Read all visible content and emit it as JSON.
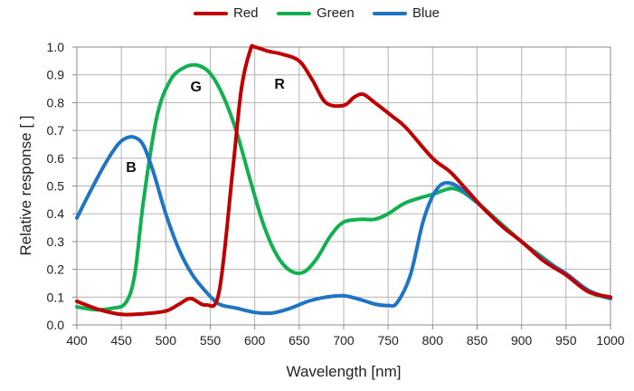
{
  "chart_data": {
    "type": "line",
    "title": "",
    "xlabel": "Wavelength [nm]",
    "ylabel": "Relative response [ ]",
    "xlim": [
      400,
      1000
    ],
    "ylim": [
      0,
      1.0
    ],
    "xticks": [
      "400",
      "450",
      "500",
      "550",
      "600",
      "650",
      "700",
      "750",
      "800",
      "850",
      "900",
      "950",
      "1000"
    ],
    "yticks": [
      "0.0",
      "0.1",
      "0.2",
      "0.3",
      "0.4",
      "0.5",
      "0.6",
      "0.7",
      "0.8",
      "0.9",
      "1.0"
    ],
    "grid": true,
    "legend_position": "top-center",
    "annotations": [
      {
        "text": "B",
        "x": 461,
        "y": 0.55
      },
      {
        "text": "G",
        "x": 534,
        "y": 0.84
      },
      {
        "text": "R",
        "x": 628,
        "y": 0.85
      }
    ],
    "series": [
      {
        "name": "Red",
        "color": "#c00000",
        "x": [
          400,
          425,
          450,
          475,
          500,
          515,
          528,
          545,
          560,
          575,
          585,
          595,
          600,
          615,
          630,
          650,
          665,
          680,
          700,
          712,
          722,
          735,
          755,
          770,
          800,
          820,
          840,
          860,
          880,
          900,
          925,
          950,
          975,
          1000
        ],
        "y": [
          0.085,
          0.055,
          0.038,
          0.04,
          0.05,
          0.075,
          0.095,
          0.072,
          0.12,
          0.55,
          0.85,
          0.99,
          1.0,
          0.985,
          0.975,
          0.95,
          0.88,
          0.8,
          0.79,
          0.82,
          0.83,
          0.8,
          0.75,
          0.71,
          0.6,
          0.55,
          0.48,
          0.41,
          0.35,
          0.3,
          0.23,
          0.18,
          0.12,
          0.1
        ]
      },
      {
        "name": "Green",
        "color": "#12b050",
        "x": [
          400,
          420,
          440,
          455,
          465,
          475,
          490,
          505,
          520,
          535,
          550,
          565,
          580,
          595,
          610,
          625,
          640,
          655,
          670,
          685,
          700,
          720,
          735,
          750,
          770,
          800,
          825,
          850,
          875,
          900,
          925,
          950,
          975,
          1000
        ],
        "y": [
          0.065,
          0.055,
          0.06,
          0.08,
          0.18,
          0.45,
          0.75,
          0.88,
          0.925,
          0.935,
          0.905,
          0.82,
          0.69,
          0.52,
          0.36,
          0.25,
          0.195,
          0.19,
          0.24,
          0.32,
          0.37,
          0.38,
          0.38,
          0.4,
          0.44,
          0.47,
          0.49,
          0.44,
          0.37,
          0.3,
          0.24,
          0.18,
          0.12,
          0.095
        ]
      },
      {
        "name": "Blue",
        "color": "#1f74c4",
        "x": [
          400,
          415,
          430,
          445,
          455,
          465,
          475,
          487,
          500,
          515,
          530,
          545,
          560,
          580,
          600,
          620,
          640,
          660,
          680,
          700,
          720,
          735,
          750,
          760,
          775,
          790,
          805,
          820,
          840,
          860,
          880,
          900,
          925,
          950,
          975,
          1000
        ],
        "y": [
          0.385,
          0.48,
          0.57,
          0.645,
          0.672,
          0.675,
          0.645,
          0.54,
          0.4,
          0.27,
          0.18,
          0.12,
          0.075,
          0.06,
          0.045,
          0.043,
          0.06,
          0.085,
          0.1,
          0.105,
          0.09,
          0.075,
          0.07,
          0.08,
          0.18,
          0.38,
          0.49,
          0.51,
          0.47,
          0.41,
          0.35,
          0.3,
          0.235,
          0.185,
          0.125,
          0.095
        ]
      }
    ]
  }
}
